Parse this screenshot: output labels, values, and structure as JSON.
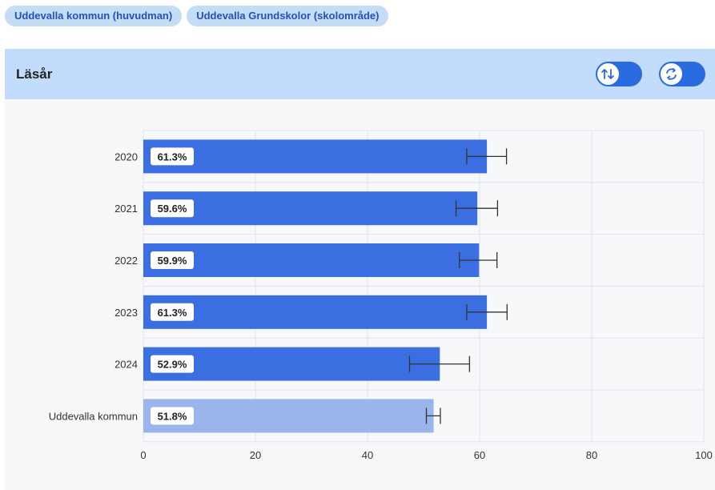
{
  "tags": [
    "Uddevalla kommun (huvudman)",
    "Uddevalla Grundskolor (skolområde)"
  ],
  "panel": {
    "title": "Läsår"
  },
  "colors": {
    "bar": "#3b6ee0",
    "bar_reference": "#9ab4ec",
    "grid": "#e2e4e8",
    "error": "#333333"
  },
  "chart_data": {
    "type": "bar",
    "orientation": "horizontal",
    "categories": [
      "2020",
      "2021",
      "2022",
      "2023",
      "2024",
      "Uddevalla kommun"
    ],
    "values": [
      61.3,
      59.6,
      59.9,
      61.3,
      52.9,
      51.8
    ],
    "value_labels": [
      "61.3%",
      "59.6%",
      "59.9%",
      "61.3%",
      "52.9%",
      "51.8%"
    ],
    "error_low": [
      57.7,
      55.8,
      56.4,
      57.7,
      47.5,
      50.5
    ],
    "error_high": [
      64.8,
      63.2,
      63.1,
      64.9,
      58.2,
      53.0
    ],
    "highlight_last": true,
    "xlim": [
      0,
      100
    ],
    "xticks": [
      "0",
      "20",
      "40",
      "60",
      "80",
      "100"
    ],
    "grid": true
  }
}
